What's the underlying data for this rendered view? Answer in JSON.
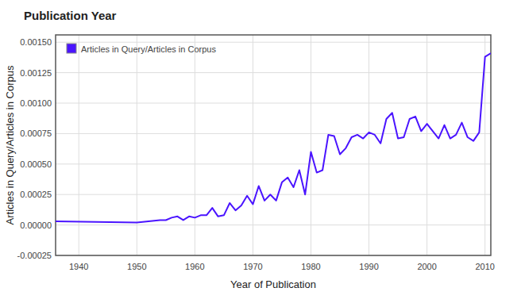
{
  "chart_data": {
    "type": "line",
    "title": "Publication Year",
    "x_label": "Year of Publication",
    "y_label": "Articles in Query/Articles in Corpus",
    "x": [
      1936,
      1950,
      1954,
      1955,
      1956,
      1957,
      1958,
      1959,
      1960,
      1961,
      1962,
      1963,
      1964,
      1965,
      1966,
      1967,
      1968,
      1969,
      1970,
      1971,
      1972,
      1973,
      1974,
      1975,
      1976,
      1977,
      1978,
      1979,
      1980,
      1981,
      1982,
      1983,
      1984,
      1985,
      1986,
      1987,
      1988,
      1989,
      1990,
      1991,
      1992,
      1993,
      1994,
      1995,
      1996,
      1997,
      1998,
      1999,
      2000,
      2001,
      2002,
      2003,
      2004,
      2005,
      2006,
      2007,
      2008,
      2009,
      2010,
      2011
    ],
    "series": [
      {
        "name": "Articles in Query/Articles in Corpus",
        "color": "#4a14ff",
        "values": [
          3e-05,
          2e-05,
          4e-05,
          4e-05,
          6e-05,
          7e-05,
          4e-05,
          7e-05,
          6e-05,
          8e-05,
          8e-05,
          0.00014,
          7e-05,
          8e-05,
          0.00018,
          0.00012,
          0.00016,
          0.00024,
          0.00017,
          0.00032,
          0.0002,
          0.00025,
          0.0002,
          0.00035,
          0.00039,
          0.00031,
          0.00045,
          0.00025,
          0.0006,
          0.00043,
          0.00045,
          0.00074,
          0.00073,
          0.00058,
          0.00063,
          0.00072,
          0.00074,
          0.00071,
          0.00076,
          0.00074,
          0.00067,
          0.00087,
          0.00092,
          0.00071,
          0.00072,
          0.00087,
          0.00089,
          0.00077,
          0.00083,
          0.00077,
          0.00071,
          0.00082,
          0.00071,
          0.00074,
          0.00084,
          0.00072,
          0.00069,
          0.00076,
          0.00138,
          0.00141
        ]
      }
    ],
    "xlim": [
      1936,
      2011
    ],
    "xticks": [
      1940,
      1950,
      1960,
      1970,
      1980,
      1990,
      2000,
      2010
    ],
    "ylim": [
      -0.00025,
      0.00156
    ],
    "yticks": [
      {
        "value": -0.00025,
        "label": "-0.00025"
      },
      {
        "value": 0,
        "label": "0.00000"
      },
      {
        "value": 0.00025,
        "label": "0.00025"
      },
      {
        "value": 0.0005,
        "label": "0.00050"
      },
      {
        "value": 0.00075,
        "label": "0.00075"
      },
      {
        "value": 0.001,
        "label": "0.00100"
      },
      {
        "value": 0.00125,
        "label": "0.00125"
      },
      {
        "value": 0.0015,
        "label": "0.00150"
      }
    ],
    "grid": true,
    "legend": "top-left"
  }
}
